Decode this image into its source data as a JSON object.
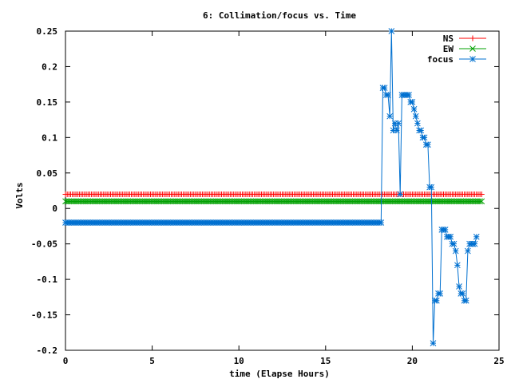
{
  "chart_data": {
    "type": "line",
    "title": "6: Collimation/focus vs. Time",
    "xlabel": "time (Elapse Hours)",
    "ylabel": "Volts",
    "xlim": [
      0,
      25
    ],
    "ylim": [
      -0.2,
      0.25
    ],
    "xticks": [
      0,
      5,
      10,
      15,
      20,
      25
    ],
    "xtick_labels": [
      "0",
      "5",
      "10",
      "15",
      "20",
      "25"
    ],
    "yticks": [
      -0.2,
      -0.15,
      -0.1,
      -0.05,
      0,
      0.05,
      0.1,
      0.15,
      0.2,
      0.25
    ],
    "ytick_labels": [
      "-0.2",
      "-0.15",
      "-0.1",
      "-0.05",
      "0",
      "0.05",
      "0.1",
      "0.15",
      "0.2",
      "0.25"
    ],
    "grid": false,
    "legend_position": "top-right",
    "series": [
      {
        "name": "NS",
        "color": "#ff0000",
        "marker": "plus",
        "constant": {
          "y": 0.02,
          "x_start": 0,
          "x_end": 24,
          "x_step": 0.1
        }
      },
      {
        "name": "EW",
        "color": "#00a000",
        "marker": "cross",
        "constant": {
          "y": 0.01,
          "x_start": 0,
          "x_end": 24,
          "x_step": 0.1
        }
      },
      {
        "name": "focus",
        "color": "#0070d0",
        "marker": "star",
        "constant": {
          "y": -0.02,
          "x_start": 0,
          "x_end": 18.2,
          "x_step": 0.1
        },
        "points": [
          [
            18.3,
            0.17
          ],
          [
            18.4,
            0.17
          ],
          [
            18.5,
            0.16
          ],
          [
            18.6,
            0.16
          ],
          [
            18.7,
            0.13
          ],
          [
            18.8,
            0.25
          ],
          [
            18.9,
            0.11
          ],
          [
            19.0,
            0.12
          ],
          [
            19.1,
            0.11
          ],
          [
            19.2,
            0.12
          ],
          [
            19.3,
            0.02
          ],
          [
            19.4,
            0.16
          ],
          [
            19.5,
            0.16
          ],
          [
            19.6,
            0.16
          ],
          [
            19.7,
            0.16
          ],
          [
            19.8,
            0.16
          ],
          [
            19.9,
            0.15
          ],
          [
            20.0,
            0.15
          ],
          [
            20.1,
            0.14
          ],
          [
            20.2,
            0.13
          ],
          [
            20.3,
            0.12
          ],
          [
            20.4,
            0.11
          ],
          [
            20.5,
            0.11
          ],
          [
            20.6,
            0.1
          ],
          [
            20.7,
            0.1
          ],
          [
            20.8,
            0.09
          ],
          [
            20.9,
            0.09
          ],
          [
            21.0,
            0.03
          ],
          [
            21.1,
            0.03
          ],
          [
            21.2,
            -0.19
          ],
          [
            21.3,
            -0.13
          ],
          [
            21.4,
            -0.13
          ],
          [
            21.5,
            -0.12
          ],
          [
            21.6,
            -0.12
          ],
          [
            21.7,
            -0.03
          ],
          [
            21.8,
            -0.03
          ],
          [
            21.9,
            -0.03
          ],
          [
            22.0,
            -0.04
          ],
          [
            22.1,
            -0.04
          ],
          [
            22.2,
            -0.04
          ],
          [
            22.3,
            -0.05
          ],
          [
            22.4,
            -0.05
          ],
          [
            22.5,
            -0.06
          ],
          [
            22.6,
            -0.08
          ],
          [
            22.7,
            -0.11
          ],
          [
            22.8,
            -0.12
          ],
          [
            22.9,
            -0.12
          ],
          [
            23.0,
            -0.13
          ],
          [
            23.1,
            -0.13
          ],
          [
            23.2,
            -0.06
          ],
          [
            23.3,
            -0.05
          ],
          [
            23.4,
            -0.05
          ],
          [
            23.5,
            -0.05
          ],
          [
            23.6,
            -0.05
          ],
          [
            23.7,
            -0.04
          ]
        ]
      }
    ]
  }
}
